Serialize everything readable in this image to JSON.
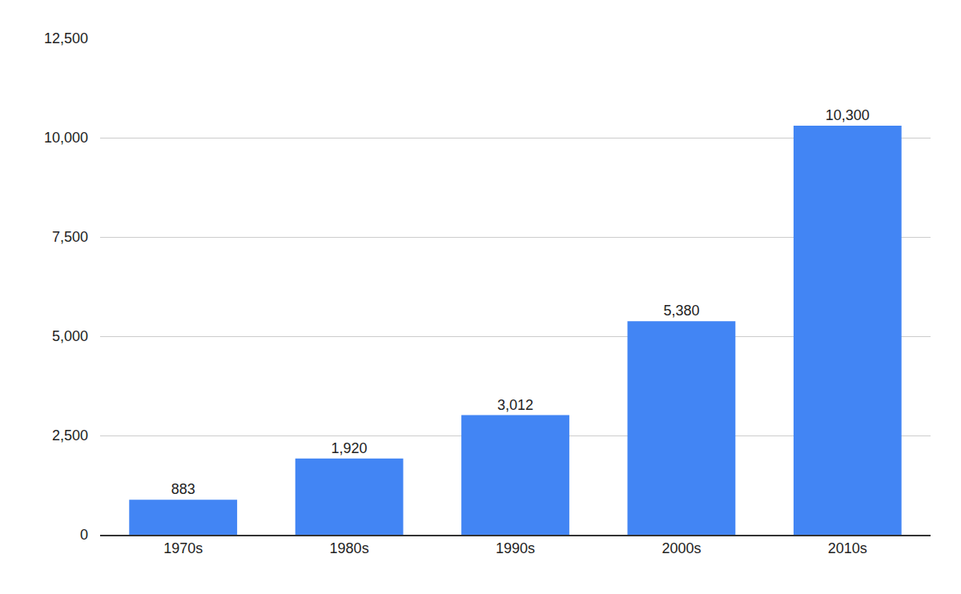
{
  "chart_data": {
    "type": "bar",
    "categories": [
      "1970s",
      "1980s",
      "1990s",
      "2000s",
      "2010s"
    ],
    "values": [
      883,
      1920,
      3012,
      5380,
      10300
    ],
    "value_labels": [
      "883",
      "1,920",
      "3,012",
      "5,380",
      "10,300"
    ],
    "color": "#4285f4",
    "ylim": [
      0,
      12500
    ],
    "yticks": [
      0,
      {
        "value": 2500,
        "label": "2,500"
      },
      {
        "value": 5000,
        "label": "5,000"
      },
      {
        "value": 7500,
        "label": "7,500"
      },
      {
        "value": 10000,
        "label": "10,000"
      },
      {
        "value": 12500,
        "label": "12,500"
      }
    ],
    "grid": true,
    "data_labels": true
  }
}
